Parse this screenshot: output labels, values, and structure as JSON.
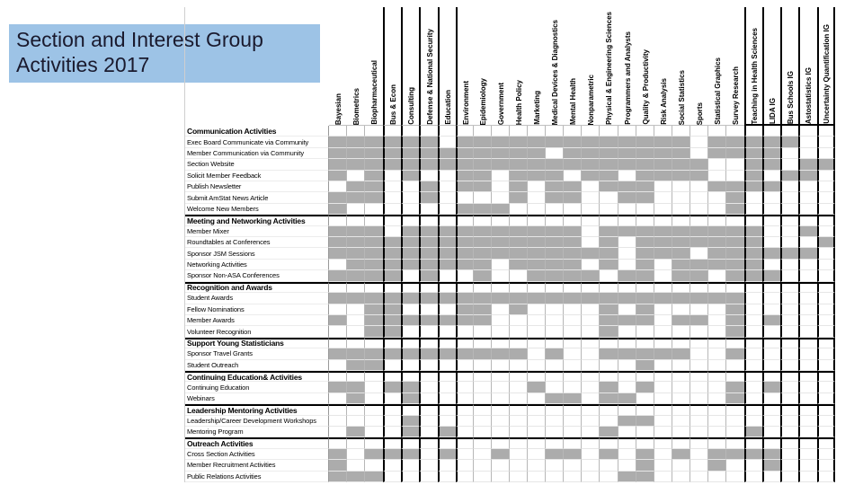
{
  "title": "Section and Interest Group Activities 2017",
  "colors": {
    "title_bg": "#9DC3E6",
    "title_text": "#1A1A2E",
    "cell_fill": "#ACACAC",
    "grid_line": "#B7B7B7",
    "section_line": "#000000"
  },
  "chart_data": {
    "type": "heatmap",
    "title": "Section and Interest Group Activities 2017",
    "legend_position": "none",
    "grid": true,
    "value_meaning": "1 = section/interest group performs the activity (gray cell), 0 = blank",
    "columns": [
      "Bayesian",
      "Biometrics",
      "Biopharmaceutical",
      "Bus & Econ",
      "Consulting",
      "Defense & National Security",
      "Education",
      "Environment",
      "Epidemiology",
      "Government",
      "Health Policy",
      "Marketing",
      "Medical Devices & Diagnostics",
      "Mental Health",
      "Nonparametric",
      "Physical & Engineering Sciences",
      "Programmers and Analysts",
      "Quality & Productivity",
      "Risk Analysis",
      "Social Statistics",
      "Sports",
      "Statistical Graphics",
      "Survey Research",
      "Teaching in Health Sciences",
      "LIDA IG",
      "Bus Schools IG",
      "Astostatistics IG",
      "Uncertainty Quantification IG"
    ],
    "rows": [
      {
        "type": "section",
        "label": "Communication Activities"
      },
      {
        "type": "item",
        "label": "Exec Board Communicate via Community",
        "cells": [
          1,
          1,
          1,
          1,
          1,
          1,
          0,
          1,
          1,
          1,
          1,
          1,
          1,
          1,
          1,
          1,
          1,
          1,
          1,
          1,
          0,
          1,
          1,
          1,
          1,
          1,
          0,
          0
        ]
      },
      {
        "type": "item",
        "label": "Member Communication via Community",
        "cells": [
          1,
          1,
          1,
          1,
          1,
          1,
          1,
          1,
          1,
          1,
          1,
          1,
          0,
          1,
          1,
          1,
          1,
          1,
          1,
          1,
          0,
          1,
          1,
          1,
          1,
          0,
          0,
          0
        ]
      },
      {
        "type": "item",
        "label": "Section Website",
        "cells": [
          1,
          1,
          1,
          1,
          1,
          1,
          1,
          1,
          1,
          1,
          1,
          1,
          1,
          1,
          1,
          1,
          1,
          1,
          1,
          1,
          1,
          0,
          0,
          1,
          1,
          0,
          1,
          1
        ]
      },
      {
        "type": "item",
        "label": "Solicit Member Feedback",
        "cells": [
          1,
          0,
          1,
          0,
          1,
          0,
          0,
          1,
          1,
          0,
          1,
          1,
          1,
          0,
          1,
          1,
          0,
          1,
          1,
          1,
          1,
          0,
          0,
          1,
          0,
          1,
          1,
          0
        ]
      },
      {
        "type": "item",
        "label": "Publish Newsletter",
        "cells": [
          0,
          1,
          1,
          0,
          0,
          1,
          0,
          1,
          1,
          0,
          1,
          0,
          1,
          1,
          0,
          1,
          1,
          1,
          0,
          0,
          0,
          1,
          1,
          1,
          1,
          0,
          0,
          0
        ]
      },
      {
        "type": "item",
        "label": "Submit AmStat News Article",
        "cells": [
          1,
          1,
          1,
          0,
          0,
          1,
          0,
          0,
          0,
          0,
          1,
          0,
          1,
          1,
          0,
          0,
          1,
          1,
          0,
          0,
          0,
          0,
          1,
          0,
          0,
          0,
          0,
          0
        ]
      },
      {
        "type": "item",
        "label": "Welcome New Members",
        "cells": [
          1,
          0,
          0,
          0,
          0,
          0,
          0,
          1,
          1,
          1,
          0,
          0,
          0,
          0,
          0,
          0,
          0,
          0,
          0,
          0,
          0,
          0,
          1,
          0,
          0,
          0,
          0,
          0
        ]
      },
      {
        "type": "section",
        "label": "Meeting and Networking Activities"
      },
      {
        "type": "item",
        "label": "Member Mixer",
        "cells": [
          1,
          1,
          1,
          0,
          1,
          1,
          1,
          1,
          1,
          1,
          1,
          1,
          1,
          1,
          0,
          1,
          1,
          1,
          1,
          1,
          1,
          1,
          1,
          1,
          0,
          0,
          1,
          0
        ]
      },
      {
        "type": "item",
        "label": "Roundtables at Conferences",
        "cells": [
          1,
          1,
          1,
          1,
          1,
          1,
          1,
          1,
          1,
          1,
          1,
          1,
          1,
          1,
          0,
          1,
          0,
          1,
          1,
          1,
          1,
          1,
          1,
          1,
          0,
          0,
          0,
          1
        ]
      },
      {
        "type": "item",
        "label": "Sponsor JSM Sessions",
        "cells": [
          1,
          1,
          1,
          1,
          1,
          1,
          1,
          1,
          1,
          1,
          1,
          1,
          1,
          1,
          1,
          1,
          0,
          1,
          1,
          1,
          0,
          1,
          1,
          1,
          1,
          1,
          1,
          0
        ]
      },
      {
        "type": "item",
        "label": "Networking Activities",
        "cells": [
          0,
          1,
          1,
          1,
          1,
          1,
          1,
          1,
          1,
          0,
          1,
          1,
          1,
          1,
          0,
          1,
          0,
          1,
          0,
          1,
          1,
          1,
          1,
          1,
          0,
          0,
          0,
          0
        ]
      },
      {
        "type": "item",
        "label": "Sponsor Non-ASA Conferences",
        "cells": [
          1,
          1,
          1,
          1,
          0,
          1,
          0,
          0,
          1,
          0,
          0,
          1,
          1,
          1,
          1,
          0,
          1,
          1,
          0,
          1,
          1,
          0,
          1,
          1,
          1,
          0,
          0,
          0
        ]
      },
      {
        "type": "section",
        "label": "Recognition and Awards"
      },
      {
        "type": "item",
        "label": "Student Awards",
        "cells": [
          1,
          1,
          1,
          1,
          1,
          1,
          1,
          1,
          1,
          1,
          1,
          1,
          1,
          1,
          1,
          1,
          1,
          1,
          1,
          1,
          1,
          1,
          1,
          0,
          0,
          0,
          0,
          0
        ]
      },
      {
        "type": "item",
        "label": "Fellow Nominations",
        "cells": [
          0,
          0,
          1,
          1,
          0,
          0,
          0,
          1,
          1,
          0,
          1,
          0,
          0,
          0,
          0,
          1,
          0,
          1,
          0,
          0,
          0,
          0,
          1,
          0,
          0,
          0,
          0,
          0
        ]
      },
      {
        "type": "item",
        "label": "Member Awards",
        "cells": [
          1,
          0,
          1,
          1,
          1,
          1,
          1,
          1,
          1,
          0,
          0,
          0,
          0,
          0,
          0,
          1,
          1,
          1,
          0,
          1,
          1,
          0,
          1,
          0,
          1,
          0,
          0,
          0
        ]
      },
      {
        "type": "item",
        "label": "Volunteer Recognition",
        "cells": [
          0,
          0,
          1,
          1,
          0,
          0,
          0,
          0,
          0,
          0,
          0,
          0,
          0,
          0,
          0,
          1,
          0,
          0,
          0,
          0,
          0,
          0,
          1,
          0,
          0,
          0,
          0,
          0
        ]
      },
      {
        "type": "section",
        "label": "Support Young Statisticians"
      },
      {
        "type": "item",
        "label": "Sponsor Travel Grants",
        "cells": [
          1,
          1,
          1,
          1,
          1,
          1,
          1,
          1,
          1,
          1,
          1,
          0,
          1,
          0,
          0,
          1,
          1,
          1,
          1,
          1,
          0,
          0,
          1,
          0,
          0,
          0,
          0,
          0
        ]
      },
      {
        "type": "item",
        "label": "Student Outreach",
        "cells": [
          0,
          1,
          1,
          0,
          0,
          0,
          0,
          0,
          0,
          0,
          0,
          0,
          0,
          0,
          0,
          0,
          0,
          1,
          0,
          0,
          0,
          0,
          0,
          0,
          0,
          0,
          0,
          0
        ]
      },
      {
        "type": "section",
        "label": "Continuing Education& Activities"
      },
      {
        "type": "item",
        "label": "Continuing Education",
        "cells": [
          1,
          1,
          0,
          1,
          1,
          0,
          0,
          0,
          0,
          0,
          0,
          1,
          0,
          0,
          0,
          1,
          0,
          1,
          0,
          0,
          0,
          0,
          1,
          0,
          1,
          0,
          0,
          0
        ]
      },
      {
        "type": "item",
        "label": "Webinars",
        "cells": [
          0,
          1,
          0,
          0,
          1,
          0,
          0,
          0,
          0,
          0,
          0,
          0,
          1,
          1,
          0,
          1,
          1,
          0,
          0,
          0,
          0,
          0,
          1,
          0,
          0,
          0,
          0,
          0
        ]
      },
      {
        "type": "section",
        "label": "Leadership Mentoring Activities"
      },
      {
        "type": "item",
        "label": "Leadership/Career Development Workshops",
        "cells": [
          0,
          0,
          0,
          0,
          1,
          0,
          0,
          0,
          0,
          0,
          0,
          0,
          0,
          0,
          0,
          0,
          1,
          1,
          0,
          0,
          0,
          0,
          0,
          0,
          0,
          0,
          0,
          0
        ]
      },
      {
        "type": "item",
        "label": "Mentoring Program",
        "cells": [
          0,
          1,
          0,
          0,
          1,
          0,
          1,
          0,
          0,
          0,
          0,
          0,
          0,
          0,
          0,
          1,
          0,
          0,
          0,
          0,
          0,
          0,
          0,
          1,
          0,
          0,
          0,
          0
        ]
      },
      {
        "type": "section",
        "label": "Outreach Activities"
      },
      {
        "type": "item",
        "label": "Cross Section Activities",
        "cells": [
          1,
          0,
          1,
          1,
          1,
          0,
          1,
          0,
          0,
          1,
          0,
          0,
          1,
          1,
          0,
          1,
          0,
          1,
          0,
          1,
          0,
          1,
          1,
          1,
          1,
          0,
          0,
          0
        ]
      },
      {
        "type": "item",
        "label": "Member Recruitment Activities",
        "cells": [
          1,
          0,
          0,
          0,
          0,
          0,
          0,
          0,
          0,
          0,
          0,
          0,
          0,
          0,
          0,
          0,
          0,
          1,
          0,
          0,
          0,
          1,
          0,
          0,
          1,
          0,
          0,
          0
        ]
      },
      {
        "type": "item",
        "label": "Public Relations Activities",
        "cells": [
          1,
          1,
          1,
          0,
          0,
          0,
          0,
          0,
          0,
          0,
          0,
          0,
          0,
          0,
          0,
          0,
          1,
          1,
          0,
          0,
          0,
          0,
          0,
          0,
          0,
          0,
          0,
          0
        ]
      }
    ],
    "thick_column_left_borders": [
      3,
      4,
      5,
      6,
      7,
      23,
      24,
      25,
      26,
      27
    ],
    "thick_header_underline_columns": [
      23,
      24,
      25,
      26,
      27
    ]
  }
}
